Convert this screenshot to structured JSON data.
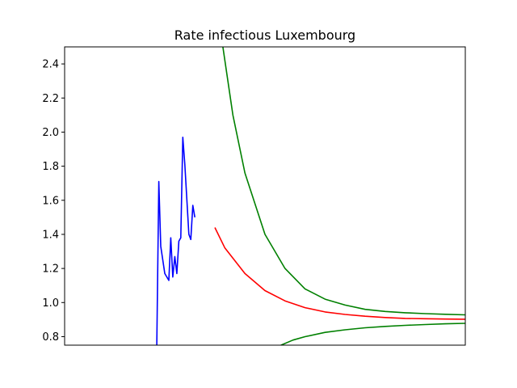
{
  "chart_data": {
    "type": "line",
    "title": "Rate infectious Luxembourg",
    "xlabel": "",
    "ylabel": "",
    "ylim": [
      0.75,
      2.5
    ],
    "xlim": [
      0,
      100
    ],
    "grid": false,
    "yticks": [
      0.8,
      1.0,
      1.2,
      1.4,
      1.6,
      1.8,
      2.0,
      2.2,
      2.4
    ],
    "ytick_labels": [
      "0.8",
      "1.0",
      "1.2",
      "1.4",
      "1.6",
      "1.8",
      "2.0",
      "2.2",
      "2.4"
    ],
    "series": [
      {
        "color": "#0000ff",
        "x": [
          23.0,
          23.5,
          24.0,
          25.0,
          26.0,
          26.5,
          27.0,
          27.5,
          28.0,
          28.5,
          29.0,
          29.5,
          30.0,
          31.0,
          31.5,
          32.0,
          32.5,
          33.0,
          33.5,
          34.0,
          34.5,
          35.0,
          35.5,
          36.0,
          36.5
        ],
        "y": [
          0.75,
          1.71,
          1.33,
          1.17,
          1.13,
          1.38,
          1.15,
          1.27,
          1.17,
          1.36,
          1.38,
          1.97,
          1.81,
          1.4,
          1.37,
          1.57,
          1.5,
          null,
          null,
          null,
          null,
          null,
          null,
          null,
          null
        ]
      },
      {
        "color": "#ff0000",
        "x": [
          37.5,
          40,
          45,
          50,
          55,
          60,
          65,
          70,
          75,
          80,
          85,
          90,
          95,
          100
        ],
        "y": [
          1.44,
          1.32,
          1.17,
          1.07,
          1.01,
          0.97,
          0.945,
          0.93,
          0.92,
          0.912,
          0.907,
          0.905,
          0.903,
          0.902
        ]
      },
      {
        "color": "#008000",
        "x": [
          39.5,
          42,
          45,
          50,
          55,
          60,
          65,
          70,
          75,
          80,
          85,
          90,
          95,
          100
        ],
        "y": [
          2.5,
          2.1,
          1.76,
          1.4,
          1.2,
          1.08,
          1.02,
          0.985,
          0.96,
          0.948,
          0.94,
          0.935,
          0.931,
          0.928
        ]
      },
      {
        "color": "#008000",
        "x": [
          54,
          57,
          60,
          65,
          70,
          75,
          80,
          85,
          90,
          95,
          100
        ],
        "y": [
          0.75,
          0.78,
          0.8,
          0.825,
          0.84,
          0.852,
          0.86,
          0.866,
          0.871,
          0.875,
          0.878
        ]
      }
    ]
  }
}
